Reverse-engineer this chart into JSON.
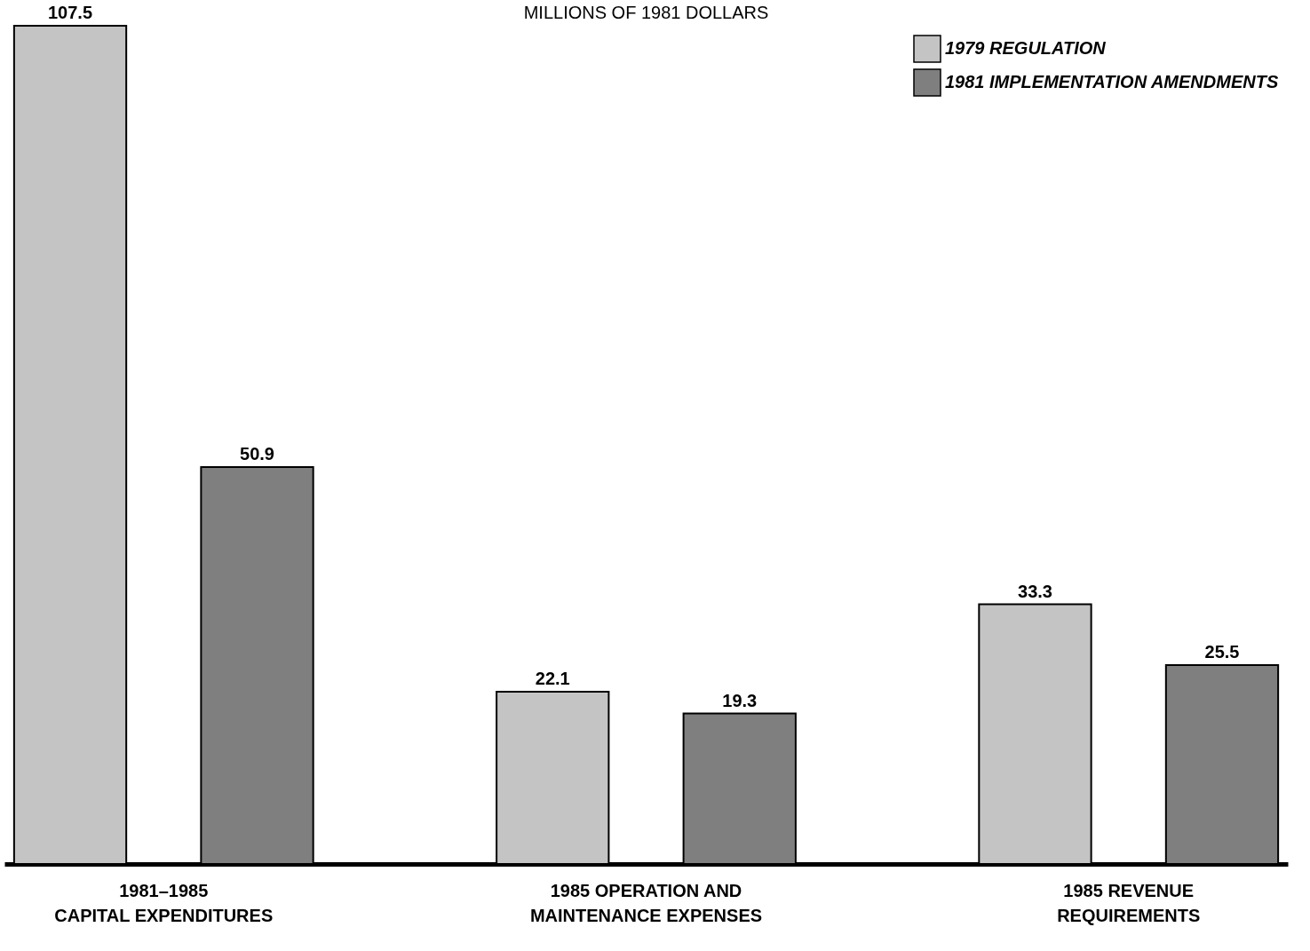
{
  "chart_data": {
    "type": "bar",
    "title": "MILLIONS OF 1981 DOLLARS",
    "categories": [
      "1981–1985\nCAPITAL EXPENDITURES",
      "1985 OPERATION AND\nMAINTENANCE EXPENSES",
      "1985 REVENUE\nREQUIREMENTS"
    ],
    "series": [
      {
        "name": "1979 REGULATION",
        "color": "#c4c4c4",
        "values": [
          107.5,
          22.1,
          33.3
        ]
      },
      {
        "name": "1981 IMPLEMENTATION AMENDMENTS",
        "color": "#7f7f7f",
        "values": [
          50.9,
          19.3,
          25.5
        ]
      }
    ],
    "data_labels": true,
    "legend": "top right",
    "grid": false
  }
}
